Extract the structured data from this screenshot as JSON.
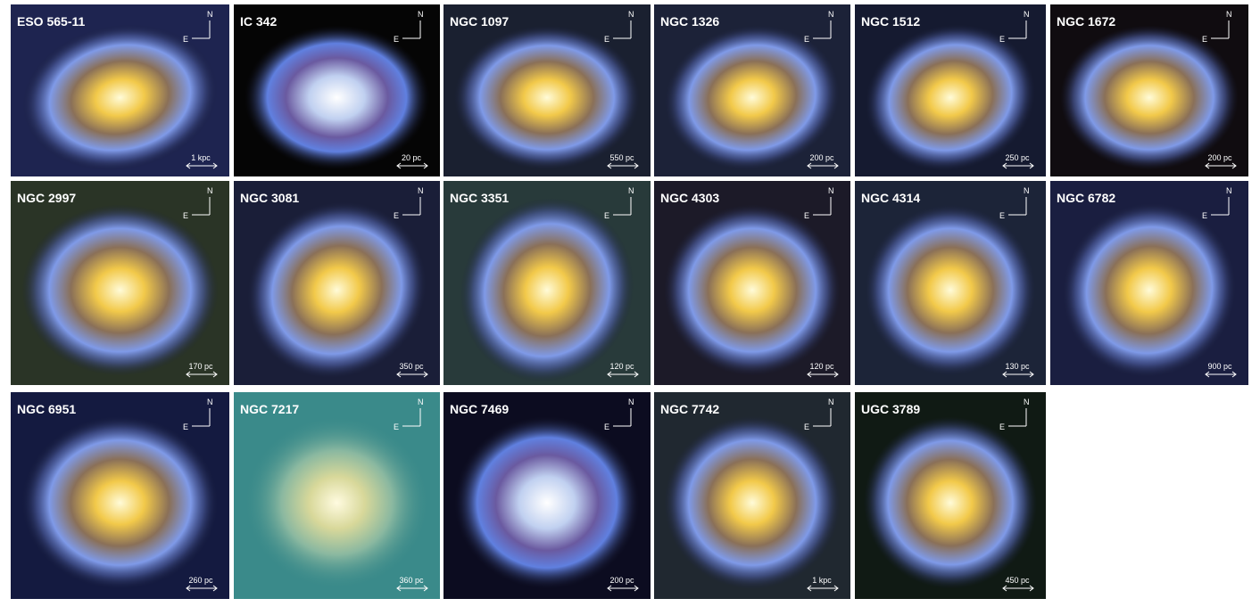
{
  "panels": [
    {
      "label": "ESO 565-11",
      "scale": "1 kpc",
      "north": "N",
      "east": "E"
    },
    {
      "label": "IC 342",
      "scale": "20 pc",
      "north": "N",
      "east": "E"
    },
    {
      "label": "NGC 1097",
      "scale": "550 pc",
      "north": "N",
      "east": "E"
    },
    {
      "label": "NGC 1326",
      "scale": "200 pc",
      "north": "N",
      "east": "E"
    },
    {
      "label": "NGC 1512",
      "scale": "250 pc",
      "north": "N",
      "east": "E"
    },
    {
      "label": "NGC 1672",
      "scale": "200 pc",
      "north": "N",
      "east": "E"
    },
    {
      "label": "NGC 2997",
      "scale": "170 pc",
      "north": "N",
      "east": "E"
    },
    {
      "label": "NGC 3081",
      "scale": "350 pc",
      "north": "N",
      "east": "E"
    },
    {
      "label": "NGC 3351",
      "scale": "120 pc",
      "north": "N",
      "east": "E"
    },
    {
      "label": "NGC 4303",
      "scale": "120 pc",
      "north": "N",
      "east": "E"
    },
    {
      "label": "NGC 4314",
      "scale": "130 pc",
      "north": "N",
      "east": "E"
    },
    {
      "label": "NGC 6782",
      "scale": "900 pc",
      "north": "N",
      "east": "E"
    },
    {
      "label": "NGC 6951",
      "scale": "260 pc",
      "north": "N",
      "east": "E"
    },
    {
      "label": "NGC 7217",
      "scale": "360 pc",
      "north": "N",
      "east": "E"
    },
    {
      "label": "NGC 7469",
      "scale": "200 pc",
      "north": "N",
      "east": "E"
    },
    {
      "label": "NGC 7742",
      "scale": "1 kpc",
      "north": "N",
      "east": "E"
    },
    {
      "label": "UGC 3789",
      "scale": "450 pc",
      "north": "N",
      "east": "E"
    }
  ]
}
